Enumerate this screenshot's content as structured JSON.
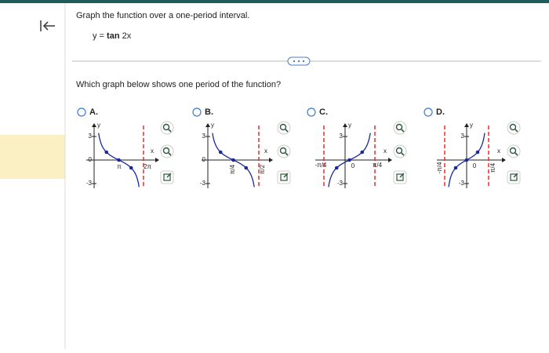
{
  "header": {
    "instruction": "Graph the function over a one-period interval.",
    "equation_lhs": "y =",
    "equation_func": "tan",
    "equation_arg": "2x"
  },
  "question": "Which graph below shows one period of the function?",
  "options": [
    {
      "label": "A.",
      "y_axis": "y",
      "x_axis": "x",
      "y_labels": [
        "3",
        "0",
        "-3"
      ],
      "x_labels": [
        "π",
        "2π"
      ]
    },
    {
      "label": "B.",
      "y_axis": "y",
      "x_axis": "x",
      "y_labels": [
        "3",
        "0",
        "-3"
      ],
      "x_labels": [
        "π/4",
        "π/2"
      ]
    },
    {
      "label": "C.",
      "y_axis": "y",
      "x_axis": "x",
      "y_labels": [
        "3",
        "0",
        "-3"
      ],
      "x_labels": [
        "-π/4",
        "π/4"
      ]
    },
    {
      "label": "D.",
      "y_axis": "y",
      "x_axis": "x",
      "y_labels": [
        "3",
        "0",
        "-3"
      ],
      "x_labels": [
        "-π/4",
        "π/4"
      ]
    }
  ]
}
